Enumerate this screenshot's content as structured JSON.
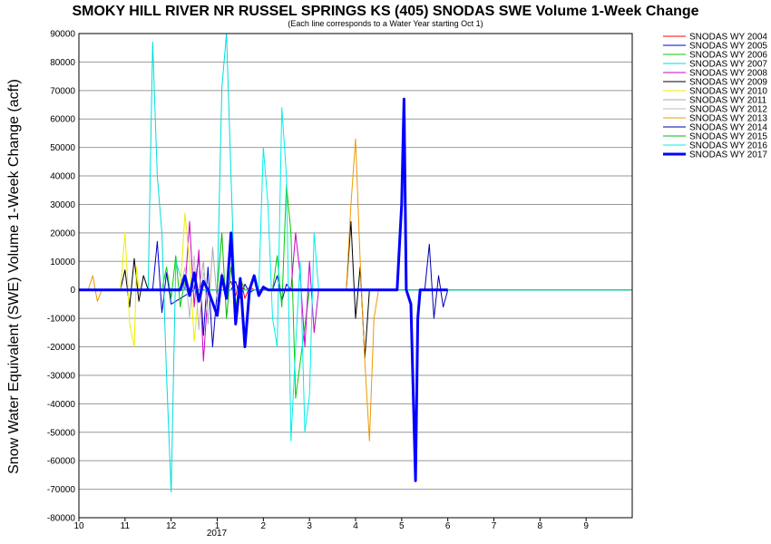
{
  "chart_data": {
    "type": "line",
    "title": "SMOKY HILL RIVER NR RUSSEL SPRINGS KS (405) SNODAS SWE Volume 1-Week Change",
    "subtitle": "(Each line corresponds to a Water Year starting Oct 1)",
    "ylabel": "Snow Water Equivalent (SWE) Volume 1-Week Change (acft)",
    "xlabel": "",
    "ylim": [
      -80000,
      90000
    ],
    "yticks": [
      90000,
      80000,
      70000,
      60000,
      50000,
      40000,
      30000,
      20000,
      10000,
      0,
      -10000,
      -20000,
      -30000,
      -40000,
      -50000,
      -60000,
      -70000,
      -80000
    ],
    "xlim_month_index": [
      0,
      12
    ],
    "xtick_labels": [
      "10",
      "11",
      "12",
      "1",
      "2",
      "3",
      "4",
      "5",
      "6",
      "7",
      "8",
      "9"
    ],
    "x_year_label": "2017",
    "grid": true,
    "legend_position": "top-right",
    "series": [
      {
        "name": "SNODAS WY 2004",
        "color": "#ff0000",
        "width": 1,
        "x": [
          0,
          3.2,
          3.3,
          3.4,
          3.5,
          3.6,
          3.7,
          3.8,
          12
        ],
        "y": [
          0,
          0,
          3000,
          -2000,
          4000,
          -3000,
          1000,
          0,
          0
        ]
      },
      {
        "name": "SNODAS WY 2005",
        "color": "#0000cc",
        "width": 1,
        "x": [
          0,
          1.6,
          1.7,
          1.8,
          1.9,
          2.0,
          2.5,
          2.6,
          2.7,
          2.8,
          2.9,
          3.0,
          4.2,
          4.3,
          4.4,
          4.5,
          4.6,
          12
        ],
        "y": [
          0,
          0,
          17000,
          -8000,
          6000,
          -5000,
          0,
          12000,
          -16000,
          8000,
          -20000,
          0,
          0,
          5000,
          -4000,
          2000,
          0,
          0
        ]
      },
      {
        "name": "SNODAS WY 2006",
        "color": "#00cc00",
        "width": 1,
        "x": [
          0,
          1.8,
          1.9,
          2.0,
          2.1,
          2.2,
          2.3,
          2.4,
          2.5,
          4.2,
          4.3,
          4.4,
          4.5,
          4.6,
          4.7,
          5.0,
          12
        ],
        "y": [
          0,
          0,
          8000,
          -3000,
          12000,
          -6000,
          4000,
          0,
          0,
          0,
          12000,
          -6000,
          37000,
          20000,
          -38000,
          0,
          0
        ]
      },
      {
        "name": "SNODAS WY 2007",
        "color": "#00dddd",
        "width": 1,
        "x": [
          0,
          1.5,
          1.6,
          1.7,
          1.8,
          1.9,
          2.0,
          2.1,
          2.2,
          2.3,
          3.0,
          3.1,
          3.2,
          3.3,
          3.4,
          3.5,
          12
        ],
        "y": [
          0,
          0,
          87000,
          40000,
          20000,
          -30000,
          -71000,
          10000,
          5000,
          0,
          0,
          71000,
          90000,
          40000,
          -10000,
          0,
          0
        ]
      },
      {
        "name": "SNODAS WY 2008",
        "color": "#cc00cc",
        "width": 1,
        "x": [
          0,
          2.3,
          2.4,
          2.5,
          2.6,
          2.7,
          2.8,
          4.6,
          4.7,
          4.8,
          4.9,
          5.0,
          5.1,
          5.2,
          5.3,
          12
        ],
        "y": [
          0,
          0,
          24000,
          -6000,
          14000,
          -25000,
          0,
          0,
          20000,
          5000,
          -20000,
          10000,
          -15000,
          0,
          0,
          0
        ]
      },
      {
        "name": "SNODAS WY 2009",
        "color": "#000000",
        "width": 1,
        "x": [
          0,
          0.9,
          1.0,
          1.1,
          1.2,
          1.3,
          1.4,
          1.5,
          5.8,
          5.9,
          6.0,
          6.1,
          6.2,
          6.3,
          12
        ],
        "y": [
          0,
          0,
          7000,
          -6000,
          11000,
          -4000,
          5000,
          0,
          0,
          24000,
          -10000,
          8000,
          -24000,
          0,
          0
        ]
      },
      {
        "name": "SNODAS WY 2010",
        "color": "#eeee00",
        "width": 1,
        "x": [
          0,
          0.9,
          1.0,
          1.05,
          1.1,
          1.2,
          1.25,
          1.3,
          1.4,
          1.5,
          2.2,
          2.3,
          2.4,
          2.5,
          2.6,
          12
        ],
        "y": [
          0,
          0,
          20000,
          5000,
          -12000,
          -20000,
          8000,
          0,
          0,
          0,
          0,
          27000,
          10000,
          -18000,
          0,
          0
        ]
      },
      {
        "name": "SNODAS WY 2011",
        "color": "#aaaaaa",
        "width": 1,
        "x": [
          0,
          2.6,
          2.7,
          2.8,
          2.9,
          3.0,
          3.1,
          3.2,
          3.3,
          12
        ],
        "y": [
          0,
          0,
          10000,
          -12000,
          15000,
          -4000,
          6000,
          0,
          0,
          0
        ]
      },
      {
        "name": "SNODAS WY 2012",
        "color": "#bbbbbb",
        "width": 1,
        "x": [
          0,
          2.2,
          2.3,
          2.4,
          2.5,
          2.6,
          2.7,
          2.8,
          2.9,
          12
        ],
        "y": [
          0,
          0,
          8000,
          -10000,
          12000,
          -14000,
          6000,
          0,
          0,
          0
        ]
      },
      {
        "name": "SNODAS WY 2013",
        "color": "#ee9900",
        "width": 1,
        "x": [
          0,
          0.2,
          0.3,
          0.4,
          0.5,
          0.6,
          5.8,
          5.9,
          6.0,
          6.1,
          6.2,
          6.3,
          6.4,
          6.5,
          12
        ],
        "y": [
          0,
          0,
          5000,
          -4000,
          0,
          0,
          0,
          30000,
          53000,
          10000,
          -25000,
          -53000,
          -10000,
          0,
          0
        ]
      },
      {
        "name": "SNODAS WY 2014",
        "color": "#0000aa",
        "width": 1,
        "x": [
          0,
          3.3,
          3.4,
          3.5,
          3.6,
          3.7,
          3.8,
          7.5,
          7.6,
          7.7,
          7.8,
          7.9,
          8.0,
          12
        ],
        "y": [
          0,
          0,
          3000,
          -3000,
          2000,
          -1000,
          0,
          0,
          16000,
          -10000,
          5000,
          -6000,
          0,
          0
        ]
      },
      {
        "name": "SNODAS WY 2015",
        "color": "#00bb00",
        "width": 1,
        "x": [
          0,
          3.0,
          3.1,
          3.2,
          3.3,
          3.4,
          3.5,
          3.6,
          3.7,
          12
        ],
        "y": [
          0,
          0,
          20000,
          -10000,
          8000,
          -6000,
          4000,
          0,
          0,
          0
        ]
      },
      {
        "name": "SNODAS WY 2016",
        "color": "#00eeee",
        "width": 1,
        "x": [
          0,
          3.9,
          4.0,
          4.1,
          4.2,
          4.3,
          4.4,
          4.5,
          4.6,
          4.7,
          4.8,
          4.9,
          5.0,
          5.1,
          5.2,
          5.3,
          5.4,
          5.5,
          12
        ],
        "y": [
          0,
          0,
          50000,
          30000,
          -10000,
          -20000,
          64000,
          40000,
          -53000,
          -20000,
          10000,
          -50000,
          -37000,
          20000,
          0,
          0,
          0,
          0,
          0
        ]
      },
      {
        "name": "SNODAS WY 2017",
        "color": "#0000ff",
        "width": 3,
        "x": [
          0,
          2.2,
          2.3,
          2.4,
          2.5,
          2.6,
          2.7,
          2.8,
          3.0,
          3.1,
          3.2,
          3.3,
          3.4,
          3.5,
          3.6,
          3.7,
          3.8,
          3.9,
          4.0,
          4.1,
          6.9,
          7.0,
          7.05,
          7.1,
          7.2,
          7.3,
          7.35,
          7.4,
          7.5,
          8.0
        ],
        "y": [
          0,
          0,
          5000,
          -2000,
          6000,
          -4000,
          3000,
          0,
          -9000,
          5000,
          -3000,
          20000,
          -12000,
          4000,
          -20000,
          0,
          5000,
          -2000,
          1000,
          0,
          0,
          30000,
          67000,
          0,
          -5000,
          -67000,
          -10000,
          0,
          0,
          0
        ]
      }
    ]
  }
}
